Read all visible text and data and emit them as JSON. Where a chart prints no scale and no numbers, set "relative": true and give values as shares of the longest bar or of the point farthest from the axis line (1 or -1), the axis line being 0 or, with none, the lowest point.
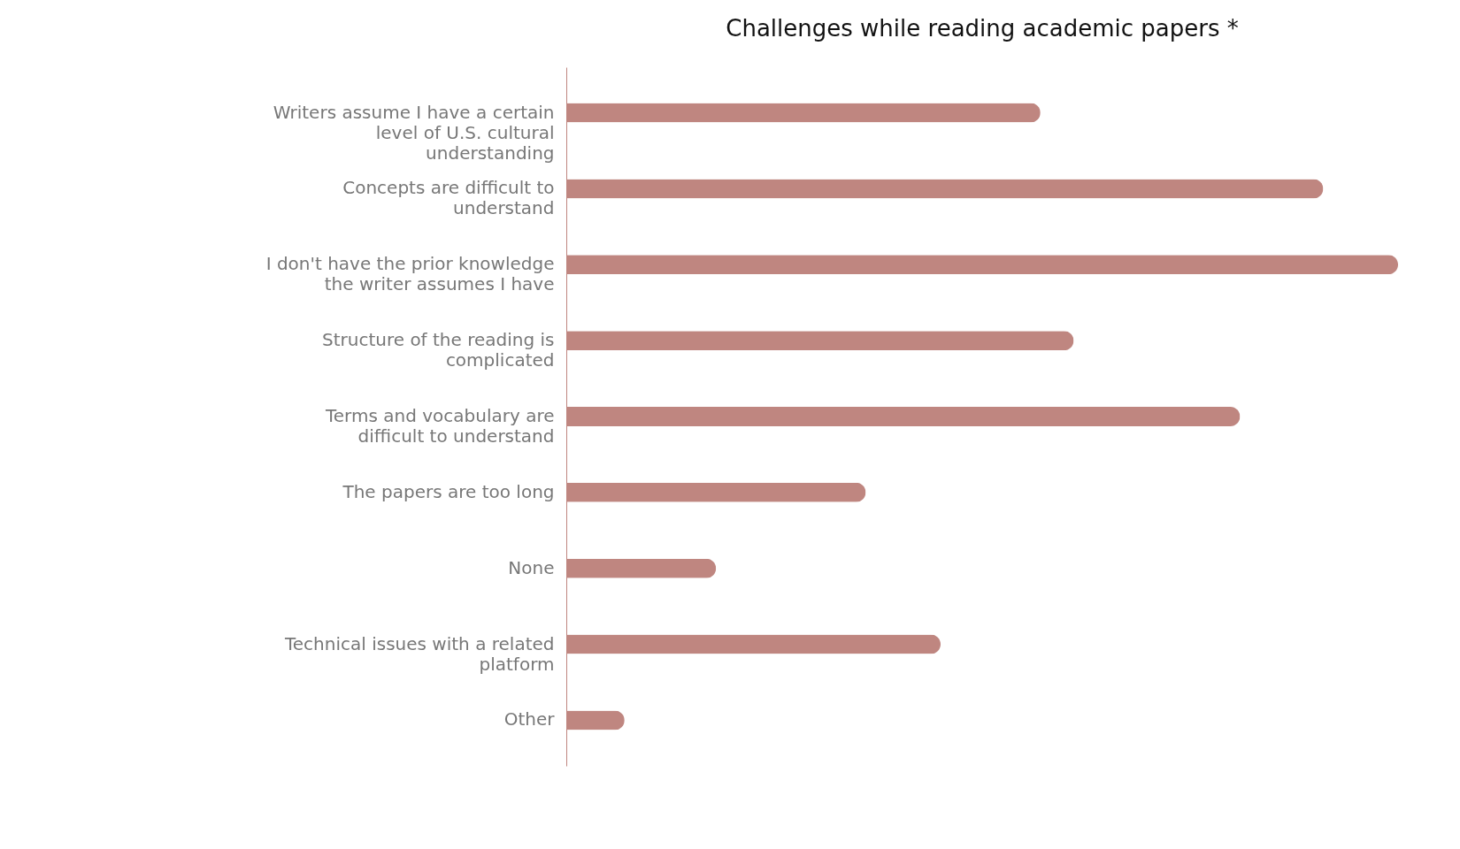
{
  "chart_data": {
    "type": "bar",
    "orientation": "horizontal",
    "relative": true,
    "title": "Challenges while reading academic papers *",
    "categories": [
      "Writers assume I have a certain level of U.S. cultural understanding",
      "Concepts are difficult to understand",
      "I don't have the prior knowledge the writer assumes I have",
      "Structure of the reading is complicated",
      "Terms and vocabulary are difficult to understand",
      "The papers are too long",
      "None",
      "Technical issues with a related platform",
      "Other"
    ],
    "values": [
      0.57,
      0.91,
      1,
      0.61,
      0.81,
      0.36,
      0.18,
      0.45,
      0.07
    ],
    "color": "#bf8680"
  }
}
